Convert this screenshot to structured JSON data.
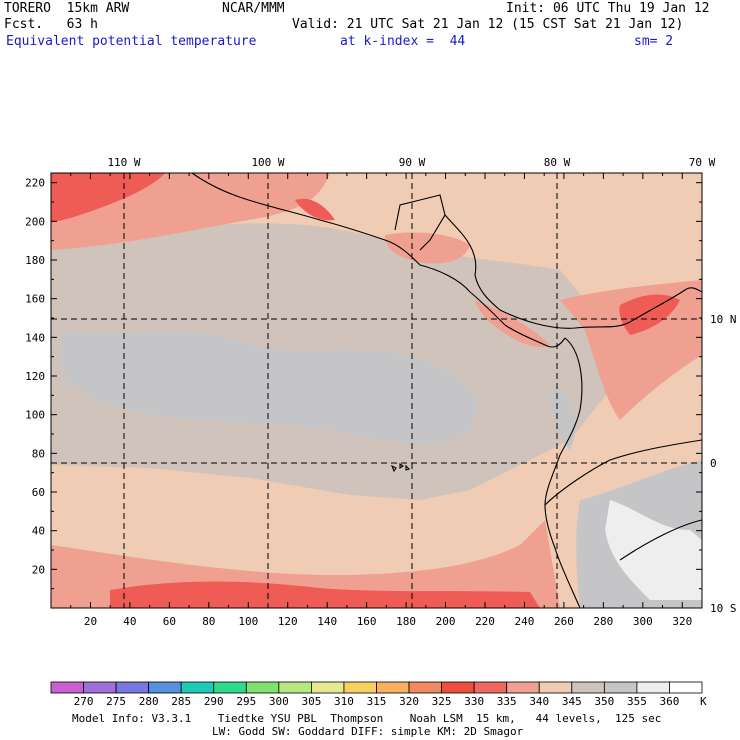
{
  "header": {
    "model": "TORERO  15km ARW",
    "org": "NCAR/MMM",
    "init": "Init: 06 UTC Thu 19 Jan 12",
    "fcst": "Fcst.   63 h",
    "valid": "Valid: 21 UTC Sat 21 Jan 12 (15 CST Sat 21 Jan 12)",
    "field": "Equivalent potential temperature",
    "level": "at k-index =  44",
    "smooth": "sm= 2"
  },
  "map": {
    "lon_labels": [
      "110 W",
      "100 W",
      "90 W",
      "80 W",
      "70 W"
    ],
    "lat_labels": [
      "10 N",
      "0",
      "10 S"
    ],
    "x_ticks": [
      "20",
      "40",
      "60",
      "80",
      "100",
      "120",
      "140",
      "160",
      "180",
      "200",
      "220",
      "240",
      "260",
      "280",
      "300",
      "320"
    ],
    "y_ticks": [
      "220",
      "200",
      "180",
      "160",
      "140",
      "120",
      "100",
      "80",
      "60",
      "40",
      "20"
    ],
    "colors": {
      "c340": "#f0ccb4",
      "c345": "#cfc3bb",
      "c350": "#c5c5c8",
      "c335": "#f0a090",
      "c330": "#ee5c55",
      "c355": "#eeeeee",
      "c360": "#ffffff"
    }
  },
  "colorbar": {
    "labels": [
      "270",
      "275",
      "280",
      "285",
      "290",
      "295",
      "300",
      "305",
      "310",
      "315",
      "320",
      "325",
      "330",
      "335",
      "340",
      "345",
      "350",
      "355",
      "360"
    ],
    "unit": "K",
    "colors": [
      "#c860d0",
      "#a070d8",
      "#7878e0",
      "#5890e0",
      "#20c8b8",
      "#30d890",
      "#80e070",
      "#b8e880",
      "#e8e890",
      "#f8d060",
      "#f8b060",
      "#f08a60",
      "#ee5040",
      "#ee6860",
      "#f0a090",
      "#f0ccb4",
      "#cfc3bb",
      "#c5c5c8",
      "#eeeeee",
      "#ffffff"
    ]
  },
  "footer": {
    "line1": "Model Info: V3.3.1    Tiedtke YSU PBL  Thompson    Noah LSM  15 km,   44 levels,  125 sec",
    "line2": "LW: Godd SW: Goddard DIFF: simple KM: 2D Smagor"
  }
}
